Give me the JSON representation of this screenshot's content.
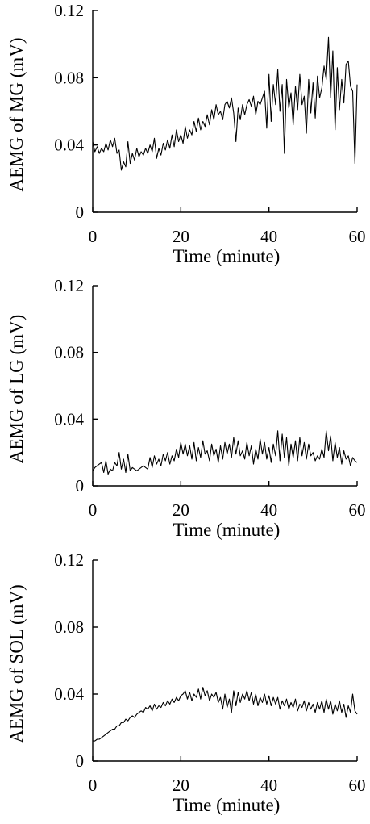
{
  "chart_data": [
    {
      "type": "line",
      "title": "",
      "xlabel": "Time (minute)",
      "ylabel": "AEMG of MG  (mV)",
      "xlim": [
        0,
        60
      ],
      "ylim": [
        0,
        0.12
      ],
      "xticks": [
        0,
        20,
        40,
        60
      ],
      "yticks": [
        0,
        0.04,
        0.08,
        0.12
      ],
      "xtick_labels": [
        "0",
        "20",
        "40",
        "60"
      ],
      "ytick_labels": [
        "0",
        "0.04",
        "0.08",
        "0.12"
      ],
      "grid": false,
      "series": [
        {
          "x": [
            0,
            0.5,
            1,
            1.5,
            2,
            2.5,
            3,
            3.5,
            4,
            4.5,
            5,
            5.5,
            6,
            6.5,
            7,
            7.5,
            8,
            8.5,
            9,
            9.5,
            10,
            10.5,
            11,
            11.5,
            12,
            12.5,
            13,
            13.5,
            14,
            14.5,
            15,
            15.5,
            16,
            16.5,
            17,
            17.5,
            18,
            18.5,
            19,
            19.5,
            20,
            20.5,
            21,
            21.5,
            22,
            22.5,
            23,
            23.5,
            24,
            24.5,
            25,
            25.5,
            26,
            26.5,
            27,
            27.5,
            28,
            28.5,
            29,
            29.5,
            30,
            30.5,
            31,
            31.5,
            32,
            32.5,
            33,
            33.5,
            34,
            34.5,
            35,
            35.5,
            36,
            36.5,
            37,
            37.5,
            38,
            38.5,
            39,
            39.5,
            40,
            40.5,
            41,
            41.5,
            42,
            42.5,
            43,
            43.5,
            44,
            44.5,
            45,
            45.5,
            46,
            46.5,
            47,
            47.5,
            48,
            48.5,
            49,
            49.5,
            50,
            50.5,
            51,
            51.5,
            52,
            52.5,
            53,
            53.5,
            54,
            54.5,
            55,
            55.5,
            56,
            56.5,
            57,
            57.5,
            58,
            58.5,
            59,
            59.5,
            60
          ],
          "values": [
            0.042,
            0.036,
            0.039,
            0.035,
            0.038,
            0.036,
            0.041,
            0.037,
            0.043,
            0.039,
            0.044,
            0.035,
            0.037,
            0.025,
            0.03,
            0.027,
            0.042,
            0.029,
            0.035,
            0.031,
            0.038,
            0.033,
            0.036,
            0.034,
            0.038,
            0.035,
            0.04,
            0.036,
            0.044,
            0.032,
            0.038,
            0.034,
            0.041,
            0.037,
            0.043,
            0.038,
            0.046,
            0.039,
            0.049,
            0.042,
            0.046,
            0.041,
            0.051,
            0.044,
            0.049,
            0.046,
            0.054,
            0.048,
            0.056,
            0.049,
            0.054,
            0.051,
            0.058,
            0.052,
            0.061,
            0.055,
            0.064,
            0.058,
            0.06,
            0.055,
            0.064,
            0.066,
            0.062,
            0.068,
            0.059,
            0.042,
            0.062,
            0.055,
            0.064,
            0.058,
            0.064,
            0.067,
            0.063,
            0.069,
            0.058,
            0.066,
            0.064,
            0.068,
            0.072,
            0.05,
            0.082,
            0.054,
            0.076,
            0.064,
            0.085,
            0.06,
            0.076,
            0.035,
            0.079,
            0.062,
            0.071,
            0.052,
            0.075,
            0.061,
            0.082,
            0.064,
            0.069,
            0.047,
            0.079,
            0.059,
            0.077,
            0.056,
            0.081,
            0.068,
            0.074,
            0.087,
            0.079,
            0.104,
            0.068,
            0.096,
            0.049,
            0.086,
            0.061,
            0.079,
            0.065,
            0.088,
            0.09,
            0.075,
            0.072,
            0.029,
            0.076
          ]
        }
      ]
    },
    {
      "type": "line",
      "title": "",
      "xlabel": "Time (minute)",
      "ylabel": "AEMG of LG  (mV)",
      "xlim": [
        0,
        60
      ],
      "ylim": [
        0,
        0.12
      ],
      "xticks": [
        0,
        20,
        40,
        60
      ],
      "yticks": [
        0,
        0.04,
        0.08,
        0.12
      ],
      "xtick_labels": [
        "0",
        "20",
        "40",
        "60"
      ],
      "ytick_labels": [
        "0",
        "0.04",
        "0.08",
        "0.12"
      ],
      "grid": false,
      "series": [
        {
          "x": [
            0,
            0.5,
            1,
            1.5,
            2,
            2.5,
            3,
            3.5,
            4,
            4.5,
            5,
            5.5,
            6,
            6.5,
            7,
            7.5,
            8,
            8.5,
            9,
            9.5,
            10,
            10.5,
            11,
            11.5,
            12,
            12.5,
            13,
            13.5,
            14,
            14.5,
            15,
            15.5,
            16,
            16.5,
            17,
            17.5,
            18,
            18.5,
            19,
            19.5,
            20,
            20.5,
            21,
            21.5,
            22,
            22.5,
            23,
            23.5,
            24,
            24.5,
            25,
            25.5,
            26,
            26.5,
            27,
            27.5,
            28,
            28.5,
            29,
            29.5,
            30,
            30.5,
            31,
            31.5,
            32,
            32.5,
            33,
            33.5,
            34,
            34.5,
            35,
            35.5,
            36,
            36.5,
            37,
            37.5,
            38,
            38.5,
            39,
            39.5,
            40,
            40.5,
            41,
            41.5,
            42,
            42.5,
            43,
            43.5,
            44,
            44.5,
            45,
            45.5,
            46,
            46.5,
            47,
            47.5,
            48,
            48.5,
            49,
            49.5,
            50,
            50.5,
            51,
            51.5,
            52,
            52.5,
            53,
            53.5,
            54,
            54.5,
            55,
            55.5,
            56,
            56.5,
            57,
            57.5,
            58,
            58.5,
            59,
            59.5,
            60
          ],
          "values": [
            0.009,
            0.011,
            0.012,
            0.013,
            0.014,
            0.008,
            0.015,
            0.007,
            0.01,
            0.009,
            0.014,
            0.012,
            0.02,
            0.01,
            0.016,
            0.008,
            0.019,
            0.009,
            0.011,
            0.01,
            0.009,
            0.01,
            0.011,
            0.012,
            0.011,
            0.01,
            0.017,
            0.011,
            0.018,
            0.013,
            0.016,
            0.012,
            0.019,
            0.015,
            0.02,
            0.013,
            0.018,
            0.015,
            0.022,
            0.017,
            0.026,
            0.019,
            0.025,
            0.018,
            0.024,
            0.016,
            0.026,
            0.015,
            0.023,
            0.017,
            0.027,
            0.019,
            0.021,
            0.015,
            0.025,
            0.018,
            0.022,
            0.014,
            0.024,
            0.016,
            0.026,
            0.019,
            0.025,
            0.017,
            0.029,
            0.019,
            0.027,
            0.018,
            0.021,
            0.016,
            0.026,
            0.018,
            0.024,
            0.013,
            0.022,
            0.016,
            0.028,
            0.019,
            0.026,
            0.016,
            0.023,
            0.014,
            0.025,
            0.018,
            0.033,
            0.015,
            0.031,
            0.017,
            0.029,
            0.012,
            0.025,
            0.017,
            0.027,
            0.015,
            0.029,
            0.018,
            0.026,
            0.016,
            0.025,
            0.018,
            0.02,
            0.015,
            0.018,
            0.016,
            0.022,
            0.017,
            0.033,
            0.021,
            0.03,
            0.015,
            0.026,
            0.017,
            0.023,
            0.013,
            0.021,
            0.016,
            0.018,
            0.012,
            0.017,
            0.015,
            0.014
          ]
        }
      ]
    },
    {
      "type": "line",
      "title": "",
      "xlabel": "Time (minute)",
      "ylabel": "AEMG of SOL  (mV)",
      "xlim": [
        0,
        60
      ],
      "ylim": [
        0,
        0.12
      ],
      "xticks": [
        0,
        20,
        40,
        60
      ],
      "yticks": [
        0,
        0.04,
        0.08,
        0.12
      ],
      "xtick_labels": [
        "0",
        "20",
        "40",
        "60"
      ],
      "ytick_labels": [
        "0",
        "0.04",
        "0.08",
        "0.12"
      ],
      "grid": false,
      "series": [
        {
          "x": [
            0,
            0.5,
            1,
            1.5,
            2,
            2.5,
            3,
            3.5,
            4,
            4.5,
            5,
            5.5,
            6,
            6.5,
            7,
            7.5,
            8,
            8.5,
            9,
            9.5,
            10,
            10.5,
            11,
            11.5,
            12,
            12.5,
            13,
            13.5,
            14,
            14.5,
            15,
            15.5,
            16,
            16.5,
            17,
            17.5,
            18,
            18.5,
            19,
            19.5,
            20,
            20.5,
            21,
            21.5,
            22,
            22.5,
            23,
            23.5,
            24,
            24.5,
            25,
            25.5,
            26,
            26.5,
            27,
            27.5,
            28,
            28.5,
            29,
            29.5,
            30,
            30.5,
            31,
            31.5,
            32,
            32.5,
            33,
            33.5,
            34,
            34.5,
            35,
            35.5,
            36,
            36.5,
            37,
            37.5,
            38,
            38.5,
            39,
            39.5,
            40,
            40.5,
            41,
            41.5,
            42,
            42.5,
            43,
            43.5,
            44,
            44.5,
            45,
            45.5,
            46,
            46.5,
            47,
            47.5,
            48,
            48.5,
            49,
            49.5,
            50,
            50.5,
            51,
            51.5,
            52,
            52.5,
            53,
            53.5,
            54,
            54.5,
            55,
            55.5,
            56,
            56.5,
            57,
            57.5,
            58,
            58.5,
            59,
            59.5,
            60
          ],
          "values": [
            0.012,
            0.012,
            0.013,
            0.013,
            0.014,
            0.015,
            0.016,
            0.017,
            0.018,
            0.019,
            0.019,
            0.021,
            0.021,
            0.023,
            0.023,
            0.025,
            0.024,
            0.026,
            0.027,
            0.026,
            0.028,
            0.029,
            0.03,
            0.029,
            0.032,
            0.031,
            0.033,
            0.03,
            0.034,
            0.031,
            0.033,
            0.032,
            0.035,
            0.033,
            0.036,
            0.034,
            0.037,
            0.035,
            0.038,
            0.036,
            0.039,
            0.04,
            0.042,
            0.037,
            0.041,
            0.036,
            0.04,
            0.038,
            0.043,
            0.037,
            0.044,
            0.039,
            0.042,
            0.036,
            0.04,
            0.038,
            0.041,
            0.035,
            0.038,
            0.031,
            0.04,
            0.032,
            0.037,
            0.029,
            0.042,
            0.033,
            0.041,
            0.035,
            0.04,
            0.037,
            0.042,
            0.036,
            0.041,
            0.034,
            0.04,
            0.033,
            0.038,
            0.035,
            0.04,
            0.034,
            0.039,
            0.033,
            0.038,
            0.034,
            0.038,
            0.031,
            0.036,
            0.033,
            0.037,
            0.031,
            0.035,
            0.032,
            0.037,
            0.03,
            0.034,
            0.032,
            0.036,
            0.03,
            0.035,
            0.031,
            0.034,
            0.029,
            0.035,
            0.031,
            0.036,
            0.029,
            0.037,
            0.031,
            0.036,
            0.028,
            0.034,
            0.03,
            0.036,
            0.029,
            0.034,
            0.026,
            0.033,
            0.029,
            0.04,
            0.03,
            0.028
          ]
        }
      ]
    }
  ]
}
